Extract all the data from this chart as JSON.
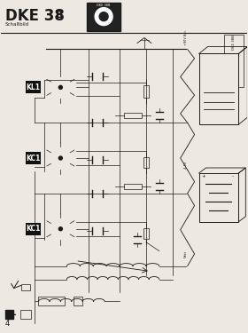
{
  "bg_color": "#ede9e2",
  "line_color": "#1a1a1a",
  "dark_color": "#111111",
  "gray_color": "#555555",
  "page_number": "4",
  "title_main": "DKE 38",
  "title_sub": "B",
  "schaltbild": "Schaltbild",
  "tube_labels": [
    "KL1",
    "KC1",
    "KC1"
  ],
  "ref_label": "DKE 38B"
}
